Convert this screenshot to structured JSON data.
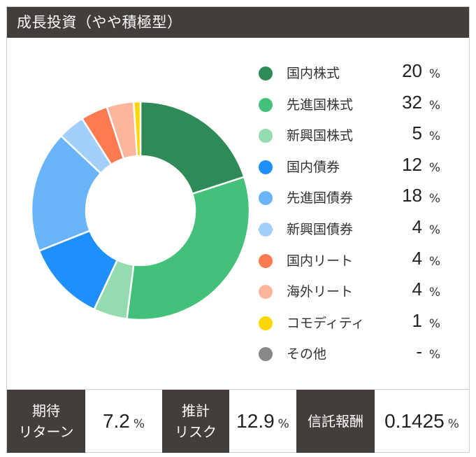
{
  "header": {
    "title": "成長投資（やや積極型）"
  },
  "chart_data": {
    "type": "pie",
    "title": "",
    "unit": "%",
    "categories": [
      "国内株式",
      "先進国株式",
      "新興国株式",
      "国内債券",
      "先進国債券",
      "新興国債券",
      "国内リート",
      "海外リート",
      "コモディティ",
      "その他"
    ],
    "values": [
      20,
      32,
      5,
      12,
      18,
      4,
      4,
      4,
      1,
      null
    ],
    "display_values": [
      "20",
      "32",
      "5",
      "12",
      "18",
      "4",
      "4",
      "4",
      "1",
      "-"
    ],
    "colors": [
      "#2e8a57",
      "#43c17a",
      "#94dcb0",
      "#1f8ffb",
      "#6ab4fb",
      "#a3cffd",
      "#fe7a51",
      "#feb59e",
      "#fdd606",
      "#888888"
    ],
    "legend_position": "right"
  },
  "stats": {
    "expected_return": {
      "label_line1": "期待",
      "label_line2": "リターン",
      "value": "7.2",
      "unit": "%"
    },
    "estimated_risk": {
      "label_line1": "推計",
      "label_line2": "リスク",
      "value": "12.9",
      "unit": "%"
    },
    "trust_fee": {
      "label": "信託報酬",
      "value": "0.1425",
      "unit": "%"
    }
  }
}
